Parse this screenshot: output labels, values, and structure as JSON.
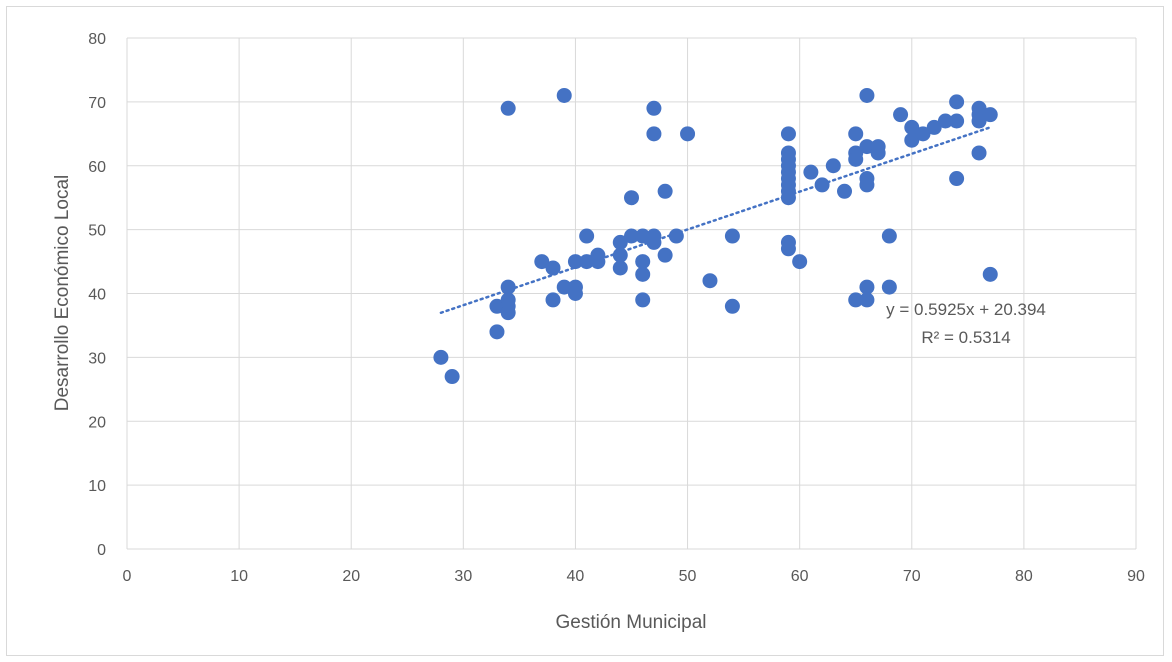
{
  "chart_data": {
    "type": "scatter",
    "xlabel": "Gestión Municipal",
    "ylabel": "Desarrollo Económico Local",
    "xlim": [
      0,
      90
    ],
    "ylim": [
      0,
      80
    ],
    "x_ticks": [
      "0",
      "10",
      "20",
      "30",
      "40",
      "50",
      "60",
      "70",
      "80",
      "90"
    ],
    "y_ticks": [
      "0",
      "10",
      "20",
      "30",
      "40",
      "50",
      "60",
      "70",
      "80"
    ],
    "grid": true,
    "colors": {
      "marker": "#4472C4",
      "trendline": "#4472C4",
      "grid": "#d9d9d9"
    },
    "points": [
      [
        28,
        30
      ],
      [
        29,
        27
      ],
      [
        33,
        38
      ],
      [
        33,
        34
      ],
      [
        34,
        41
      ],
      [
        34,
        39
      ],
      [
        34,
        38
      ],
      [
        34,
        37
      ],
      [
        34,
        69
      ],
      [
        37,
        45
      ],
      [
        38,
        44
      ],
      [
        38,
        39
      ],
      [
        39,
        41
      ],
      [
        39,
        71
      ],
      [
        40,
        45
      ],
      [
        40,
        41
      ],
      [
        40,
        40
      ],
      [
        41,
        49
      ],
      [
        41,
        45
      ],
      [
        42,
        46
      ],
      [
        42,
        45
      ],
      [
        44,
        48
      ],
      [
        44,
        46
      ],
      [
        44,
        44
      ],
      [
        45,
        55
      ],
      [
        45,
        49
      ],
      [
        46,
        49
      ],
      [
        46,
        45
      ],
      [
        46,
        43
      ],
      [
        46,
        39
      ],
      [
        47,
        69
      ],
      [
        47,
        65
      ],
      [
        47,
        49
      ],
      [
        47,
        48
      ],
      [
        48,
        56
      ],
      [
        48,
        46
      ],
      [
        49,
        49
      ],
      [
        50,
        65
      ],
      [
        52,
        42
      ],
      [
        54,
        49
      ],
      [
        54,
        38
      ],
      [
        59,
        65
      ],
      [
        59,
        62
      ],
      [
        59,
        61
      ],
      [
        59,
        60
      ],
      [
        59,
        59
      ],
      [
        59,
        58
      ],
      [
        59,
        57
      ],
      [
        59,
        56
      ],
      [
        59,
        55
      ],
      [
        59,
        48
      ],
      [
        59,
        47
      ],
      [
        60,
        45
      ],
      [
        61,
        59
      ],
      [
        62,
        57
      ],
      [
        63,
        60
      ],
      [
        64,
        56
      ],
      [
        65,
        65
      ],
      [
        65,
        62
      ],
      [
        65,
        61
      ],
      [
        65,
        39
      ],
      [
        66,
        71
      ],
      [
        66,
        63
      ],
      [
        66,
        58
      ],
      [
        66,
        57
      ],
      [
        66,
        41
      ],
      [
        66,
        39
      ],
      [
        67,
        63
      ],
      [
        67,
        62
      ],
      [
        68,
        49
      ],
      [
        68,
        41
      ],
      [
        69,
        68
      ],
      [
        70,
        66
      ],
      [
        70,
        64
      ],
      [
        71,
        65
      ],
      [
        72,
        66
      ],
      [
        73,
        67
      ],
      [
        74,
        70
      ],
      [
        74,
        67
      ],
      [
        74,
        58
      ],
      [
        76,
        69
      ],
      [
        76,
        68
      ],
      [
        76,
        67
      ],
      [
        76,
        62
      ],
      [
        77,
        68
      ],
      [
        77,
        43
      ]
    ],
    "trendline": {
      "type": "linear",
      "slope": 0.5925,
      "intercept": 20.394,
      "x_range": [
        28,
        77
      ],
      "equation": "y = 0.5925x + 20.394",
      "r_squared": "R² = 0.5314"
    }
  }
}
